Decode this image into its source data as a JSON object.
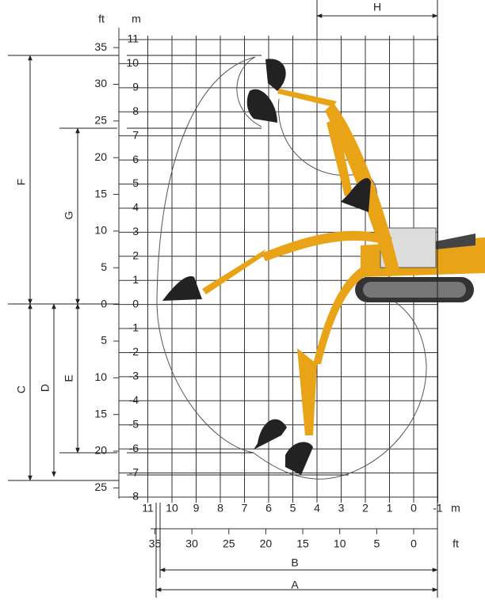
{
  "units": {
    "left": "ft",
    "top": "m",
    "bottom_m": "m",
    "bottom_ft": "ft"
  },
  "vertical_m_ticks": [
    "11",
    "10",
    "9",
    "8",
    "7",
    "6",
    "5",
    "4",
    "3",
    "2",
    "1",
    "0",
    "-1",
    "-2",
    "-3",
    "-4",
    "-5",
    "-6",
    "-7",
    "-8"
  ],
  "vertical_ft_ticks": [
    "35",
    "30",
    "25",
    "20",
    "15",
    "10",
    "5",
    "0",
    "5",
    "10",
    "15",
    "20",
    "25"
  ],
  "horizontal_m_ticks": [
    "11",
    "10",
    "9",
    "8",
    "7",
    "6",
    "5",
    "4",
    "3",
    "2",
    "1",
    "0",
    "-1"
  ],
  "horizontal_ft_ticks": [
    "35",
    "30",
    "25",
    "20",
    "15",
    "10",
    "5",
    "0"
  ],
  "dimensions": [
    {
      "label": "A"
    },
    {
      "label": "B"
    },
    {
      "label": "C"
    },
    {
      "label": "D"
    },
    {
      "label": "E"
    },
    {
      "label": "F"
    },
    {
      "label": "G"
    },
    {
      "label": "H"
    }
  ]
}
